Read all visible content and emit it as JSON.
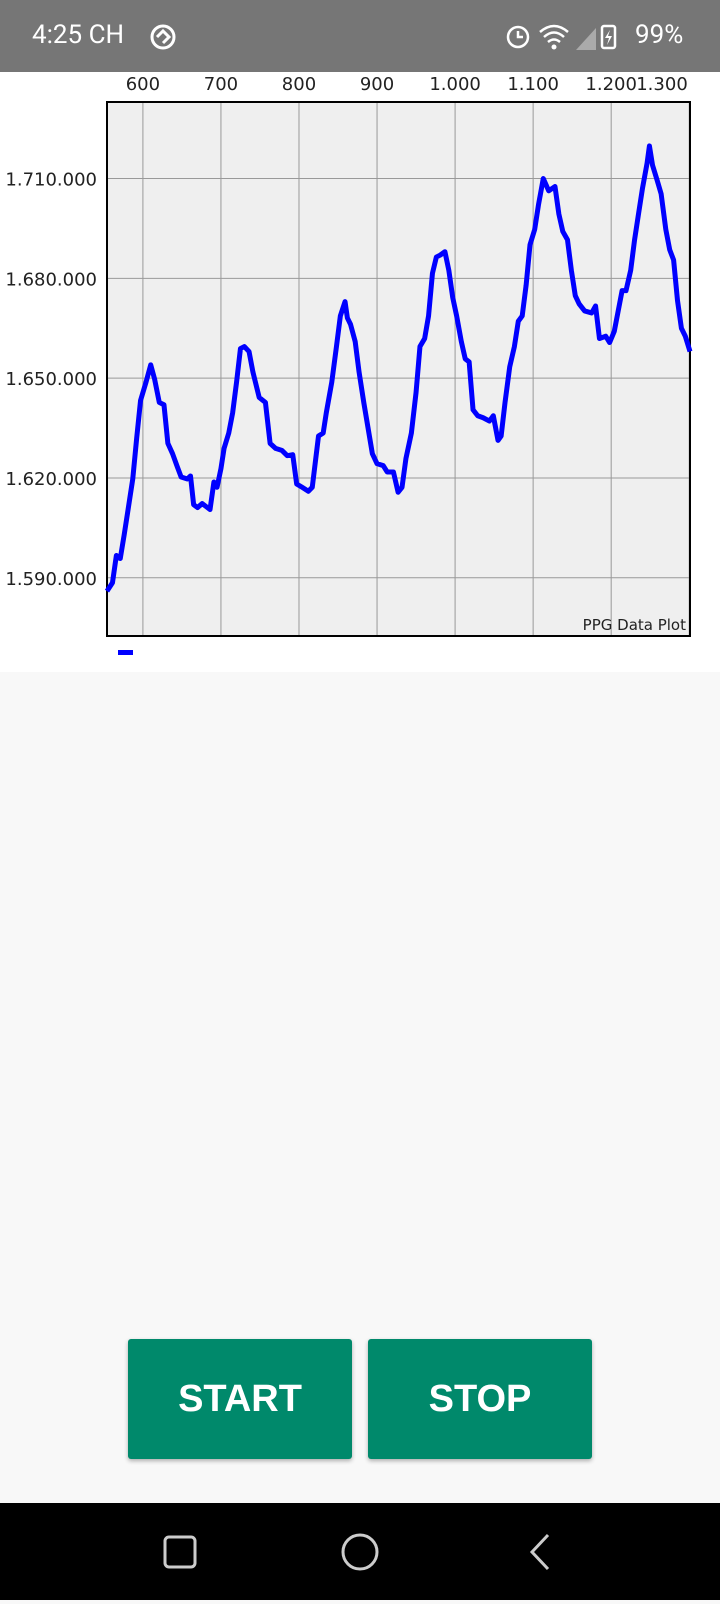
{
  "status_bar": {
    "time": "4:25 CH",
    "battery": "99%"
  },
  "chart_data": {
    "type": "line",
    "description": "PPG Data Plot",
    "x": [
      554,
      561,
      566,
      571,
      576,
      581,
      587,
      592,
      597,
      604,
      610,
      615,
      621,
      627,
      632,
      638,
      644,
      649,
      657,
      661,
      665,
      670,
      676,
      681,
      686,
      691,
      695,
      700,
      704,
      710,
      715,
      720,
      725,
      730,
      736,
      741,
      749,
      757,
      763,
      770,
      778,
      785,
      792,
      797,
      804,
      812,
      817,
      825,
      831,
      835,
      842,
      848,
      853,
      859,
      862,
      866,
      872,
      877,
      883,
      894,
      900,
      908,
      913,
      921,
      927,
      932,
      937,
      944,
      950,
      955,
      961,
      966,
      971,
      976,
      981,
      987,
      992,
      997,
      1002,
      1008,
      1013,
      1018,
      1023,
      1029,
      1036,
      1044,
      1049,
      1055,
      1059,
      1064,
      1070,
      1076,
      1081,
      1086,
      1091,
      1096,
      1102,
      1107,
      1113,
      1120,
      1128,
      1133,
      1138,
      1144,
      1149,
      1154,
      1159,
      1166,
      1175,
      1180,
      1185,
      1193,
      1198,
      1204,
      1209,
      1214,
      1219,
      1225,
      1230,
      1235,
      1240,
      1246,
      1249,
      1253,
      1259,
      1264,
      1270,
      1275,
      1280,
      1285,
      1290,
      1295,
      1301
    ],
    "series": [
      {
        "color": "#0000ff",
        "values": [
          1586000,
          1588500,
          1596700,
          1595800,
          1602900,
          1610500,
          1619700,
          1631900,
          1643300,
          1648800,
          1654000,
          1649700,
          1642700,
          1642000,
          1630400,
          1627300,
          1623400,
          1620300,
          1619700,
          1620600,
          1612000,
          1611100,
          1612300,
          1611400,
          1610500,
          1618800,
          1617200,
          1622800,
          1628900,
          1633500,
          1639600,
          1648800,
          1658900,
          1659500,
          1658000,
          1651800,
          1644200,
          1642700,
          1630400,
          1628900,
          1628300,
          1626700,
          1627000,
          1618200,
          1617200,
          1616000,
          1617200,
          1632600,
          1633500,
          1639600,
          1648800,
          1659500,
          1668700,
          1673000,
          1668100,
          1666200,
          1661000,
          1651800,
          1642700,
          1627300,
          1624300,
          1623700,
          1621800,
          1621800,
          1615700,
          1617200,
          1625800,
          1633500,
          1645700,
          1659500,
          1661900,
          1668700,
          1681500,
          1686400,
          1687000,
          1688000,
          1682400,
          1674200,
          1668700,
          1661000,
          1655800,
          1654900,
          1640500,
          1638700,
          1638100,
          1637100,
          1638700,
          1631300,
          1632600,
          1642700,
          1653400,
          1659500,
          1667100,
          1668700,
          1677900,
          1690100,
          1694700,
          1702300,
          1710000,
          1706300,
          1707600,
          1699300,
          1694100,
          1691600,
          1682400,
          1674800,
          1672300,
          1670200,
          1669600,
          1671700,
          1661900,
          1662600,
          1660700,
          1664100,
          1670200,
          1676300,
          1676300,
          1682400,
          1691600,
          1699300,
          1706900,
          1714600,
          1719800,
          1714000,
          1709400,
          1705400,
          1694700,
          1688600,
          1685500,
          1673300,
          1665000,
          1662600,
          1658000
        ]
      }
    ],
    "xlim": [
      554,
      1301
    ],
    "xticks": [
      600,
      700,
      800,
      900,
      {
        "value": 1000,
        "label": "1.000"
      },
      {
        "value": 1100,
        "label": "1.100"
      },
      {
        "value": 1200,
        "label": "1.200"
      },
      {
        "value": 1300,
        "label": "1.300"
      }
    ],
    "ylim": [
      1572500,
      1733000
    ],
    "yticks": [
      {
        "value": 1590000,
        "label": "1.590.000"
      },
      {
        "value": 1620000,
        "label": "1.620.000"
      },
      {
        "value": 1650000,
        "label": "1.650.000"
      },
      {
        "value": 1680000,
        "label": "1.680.000"
      },
      {
        "value": 1710000,
        "label": "1.710.000"
      }
    ],
    "grid": true
  },
  "buttons": {
    "start": "START",
    "stop": "STOP"
  }
}
